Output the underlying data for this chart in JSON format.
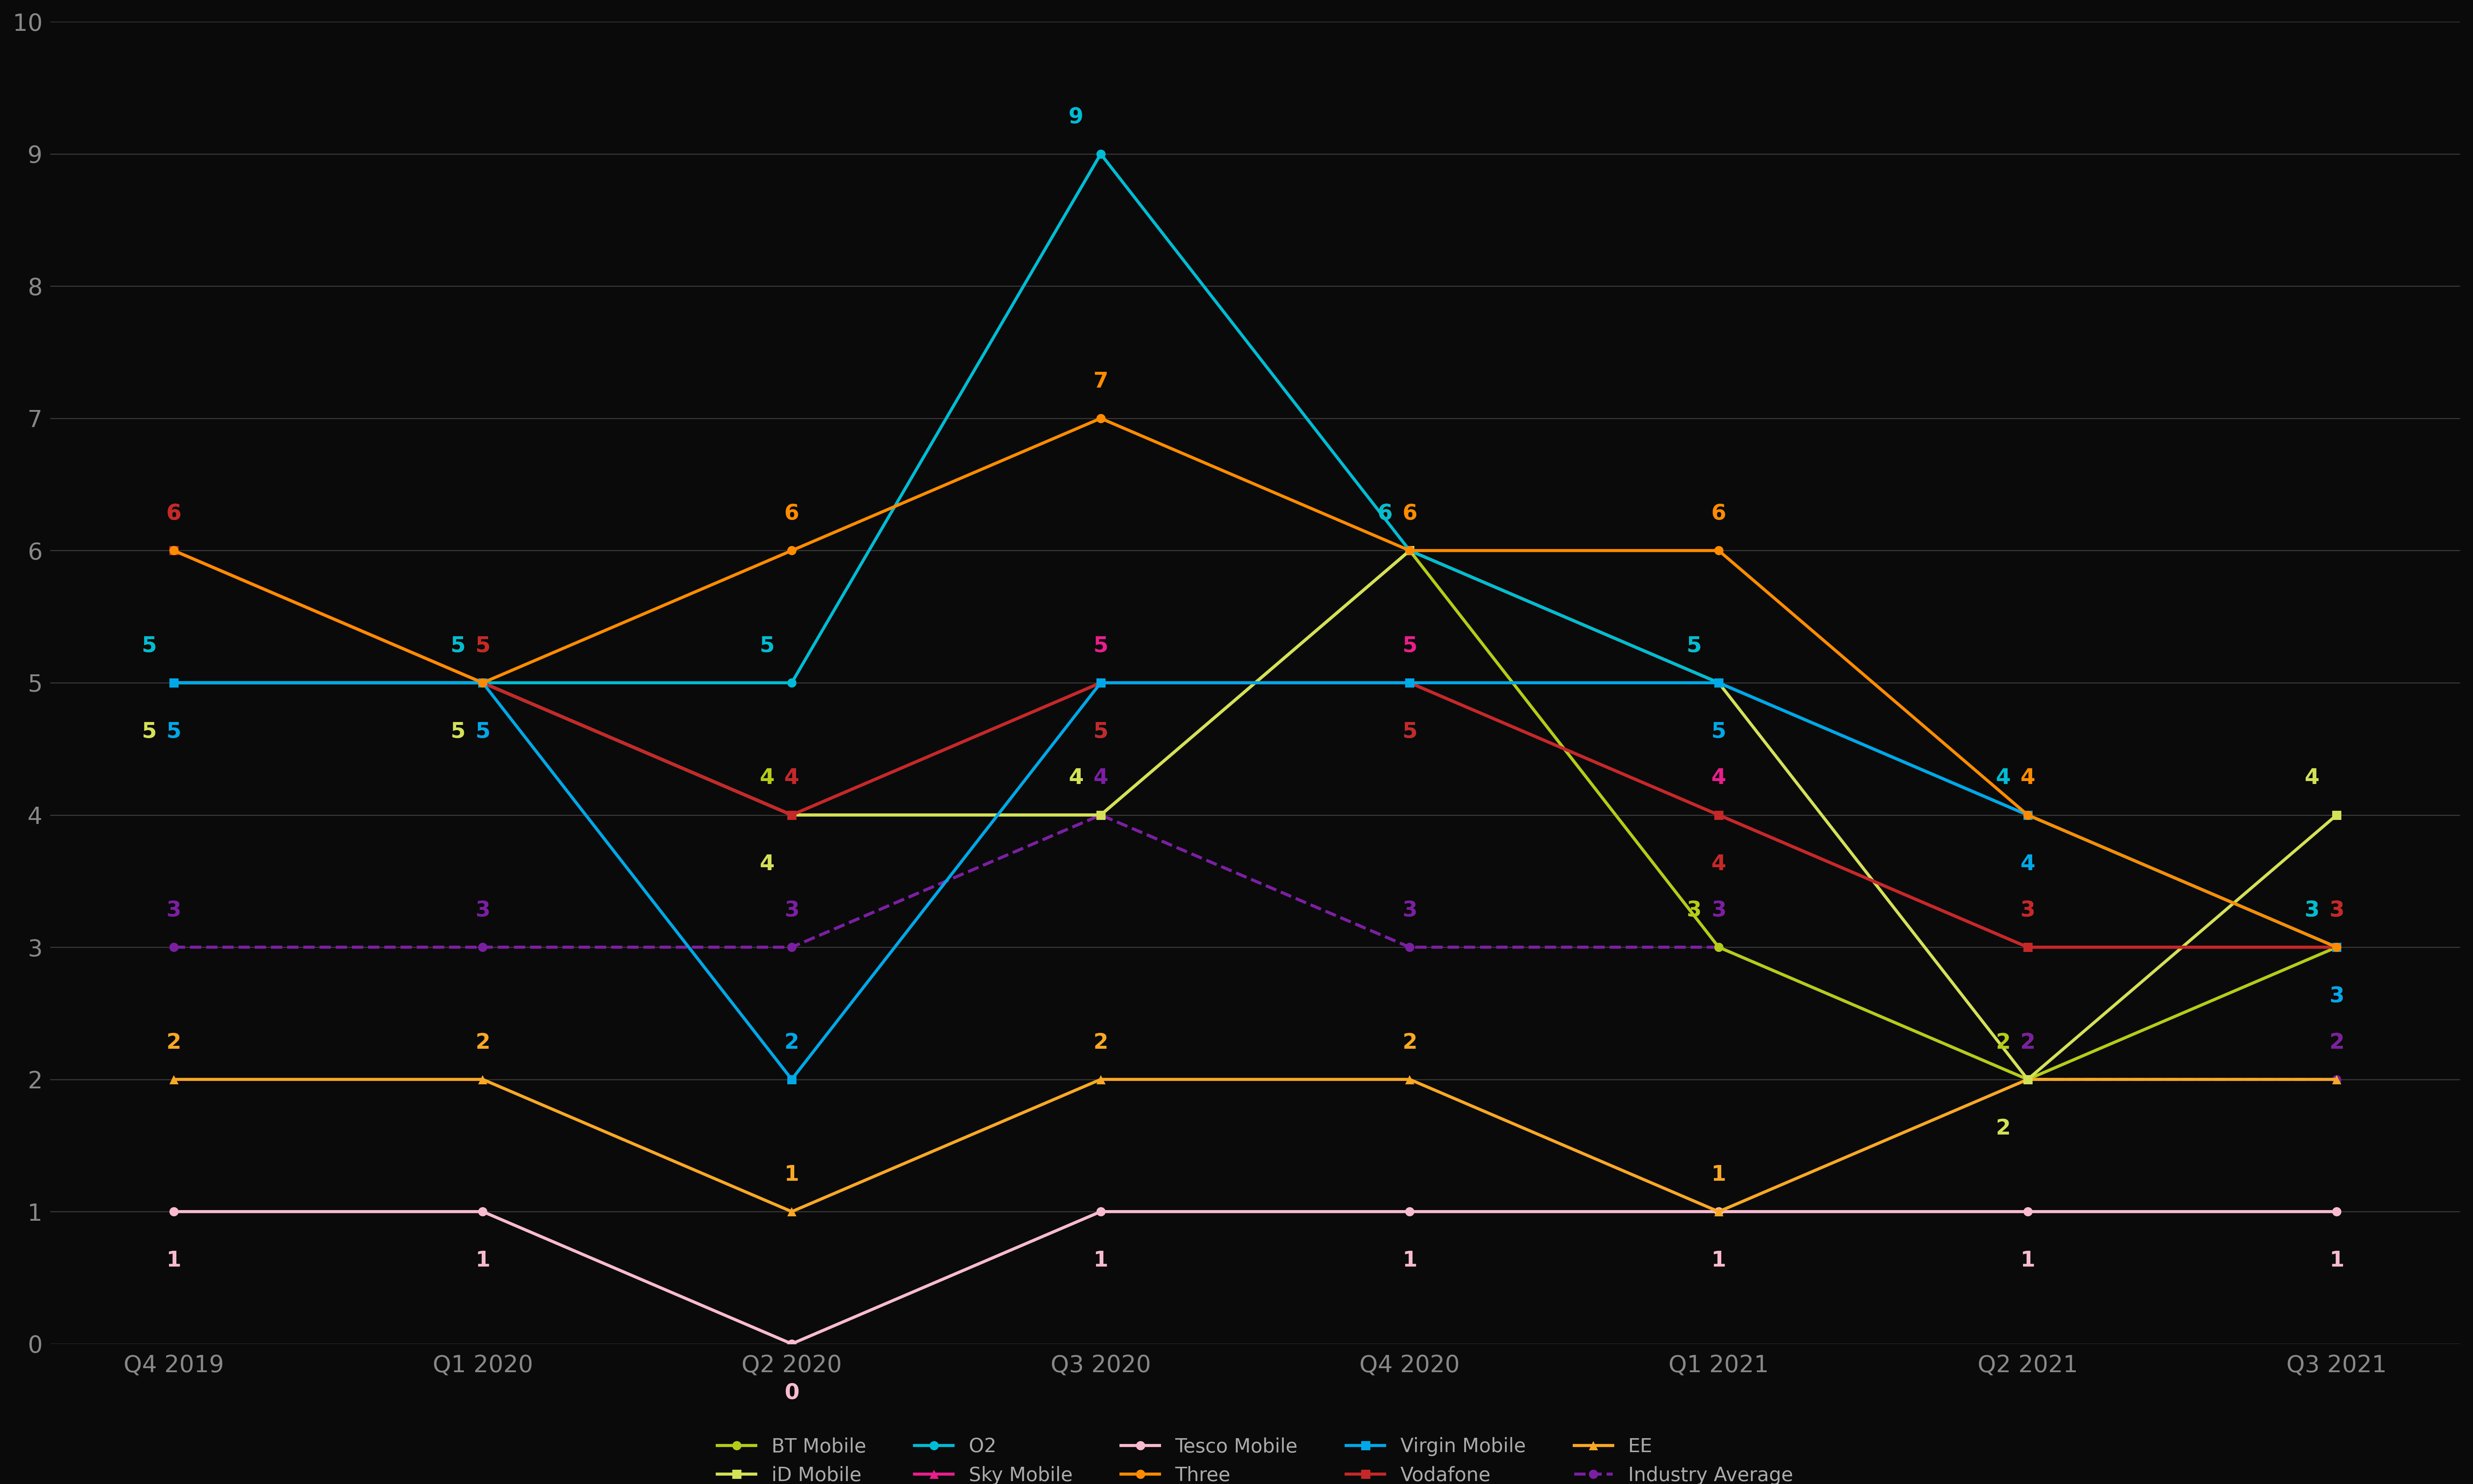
{
  "x_labels": [
    "Q4 2019",
    "Q1 2020",
    "Q2 2020",
    "Q3 2020",
    "Q4 2020",
    "Q1 2021",
    "Q2 2021",
    "Q3 2021"
  ],
  "series": {
    "BT Mobile": [
      5,
      5,
      4,
      4,
      6,
      3,
      2,
      3
    ],
    "iD Mobile": [
      5,
      5,
      4,
      4,
      6,
      5,
      2,
      4
    ],
    "O2": [
      5,
      5,
      5,
      9,
      6,
      5,
      4,
      3
    ],
    "Sky Mobile": [
      6,
      5,
      4,
      5,
      5,
      4,
      3,
      3
    ],
    "Tesco Mobile": [
      1,
      1,
      0,
      1,
      1,
      1,
      1,
      1
    ],
    "Three": [
      6,
      5,
      6,
      7,
      6,
      6,
      4,
      3
    ],
    "Virgin Mobile": [
      5,
      5,
      2,
      5,
      5,
      5,
      4,
      3
    ],
    "Vodafone": [
      6,
      5,
      4,
      5,
      5,
      4,
      3,
      3
    ],
    "EE": [
      2,
      2,
      1,
      2,
      2,
      1,
      2,
      2
    ],
    "Industry Average": [
      3,
      3,
      3,
      4,
      3,
      3,
      2,
      2
    ]
  },
  "colors": {
    "BT Mobile": "#b5cc18",
    "iD Mobile": "#d4e157",
    "O2": "#00bcd4",
    "Sky Mobile": "#e91e8c",
    "Tesco Mobile": "#f8bbd0",
    "Three": "#ff8c00",
    "Virgin Mobile": "#00a8e8",
    "Vodafone": "#c62828",
    "EE": "#f9a825",
    "Industry Average": "#7b1fa2"
  },
  "markers": {
    "BT Mobile": "o",
    "iD Mobile": "s",
    "O2": "o",
    "Sky Mobile": "^",
    "Tesco Mobile": "o",
    "Three": "o",
    "Virgin Mobile": "s",
    "Vodafone": "s",
    "EE": "^",
    "Industry Average": "o"
  },
  "linestyles": {
    "BT Mobile": "-",
    "iD Mobile": "-",
    "O2": "-",
    "Sky Mobile": "-",
    "Tesco Mobile": "-",
    "Three": "-",
    "Virgin Mobile": "-",
    "Vodafone": "-",
    "EE": "-",
    "Industry Average": "--"
  },
  "ylim": [
    0,
    10
  ],
  "yticks": [
    0,
    1,
    2,
    3,
    4,
    5,
    6,
    7,
    8,
    9,
    10
  ],
  "background_color": "#0a0a0a",
  "grid_color": "#3a3a3a",
  "text_color": "#aaaaaa",
  "tick_label_color": "#888888",
  "linewidth": 6,
  "markersize": 18,
  "label_fontsize": 42,
  "tick_fontsize": 46,
  "legend_fontsize": 38
}
